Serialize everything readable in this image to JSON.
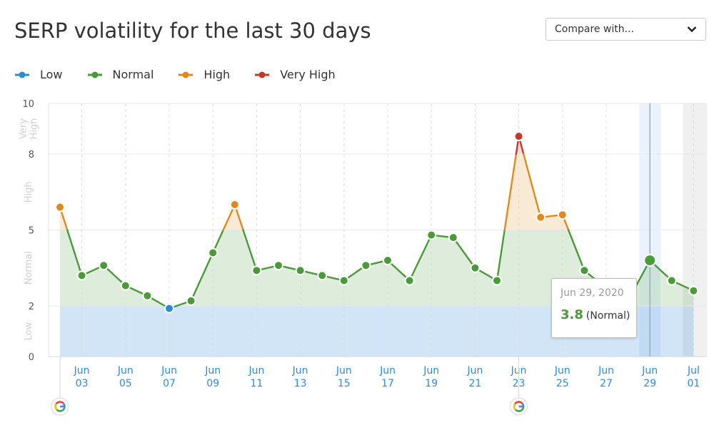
{
  "title": "SERP volatility for the last 30 days",
  "compare": {
    "label": "Compare with..."
  },
  "legend": [
    {
      "label": "Low",
      "color": "#2f8ad6"
    },
    {
      "label": "Normal",
      "color": "#4a9a3a"
    },
    {
      "label": "High",
      "color": "#e08a1e"
    },
    {
      "label": "Very High",
      "color": "#c0392b"
    }
  ],
  "tooltip": {
    "date": "Jun 29, 2020",
    "value": "3.8",
    "category": "(Normal)"
  },
  "chart_data": {
    "type": "line",
    "title": "SERP volatility for the last 30 days",
    "x": [
      "2020-06-02",
      "2020-06-03",
      "2020-06-04",
      "2020-06-05",
      "2020-06-06",
      "2020-06-07",
      "2020-06-08",
      "2020-06-09",
      "2020-06-10",
      "2020-06-11",
      "2020-06-12",
      "2020-06-13",
      "2020-06-14",
      "2020-06-15",
      "2020-06-16",
      "2020-06-17",
      "2020-06-18",
      "2020-06-19",
      "2020-06-20",
      "2020-06-21",
      "2020-06-22",
      "2020-06-23",
      "2020-06-24",
      "2020-06-25",
      "2020-06-26",
      "2020-06-27",
      "2020-06-28",
      "2020-06-29",
      "2020-06-30",
      "2020-07-01"
    ],
    "values": [
      5.9,
      3.2,
      3.6,
      2.8,
      2.4,
      1.9,
      2.2,
      4.1,
      6.0,
      3.4,
      3.6,
      3.4,
      3.2,
      3.0,
      3.6,
      3.8,
      3.0,
      4.8,
      4.7,
      3.5,
      3.0,
      8.7,
      5.5,
      5.6,
      3.4,
      2.7,
      2.2,
      3.8,
      3.0,
      2.6
    ],
    "ylim": [
      0,
      10
    ],
    "yticks": [
      "0",
      "2",
      "5",
      "8",
      "10"
    ],
    "xticks": [
      {
        "month": "Jun",
        "day": "03"
      },
      {
        "month": "Jun",
        "day": "05"
      },
      {
        "month": "Jun",
        "day": "07"
      },
      {
        "month": "Jun",
        "day": "09"
      },
      {
        "month": "Jun",
        "day": "11"
      },
      {
        "month": "Jun",
        "day": "13"
      },
      {
        "month": "Jun",
        "day": "15"
      },
      {
        "month": "Jun",
        "day": "17"
      },
      {
        "month": "Jun",
        "day": "19"
      },
      {
        "month": "Jun",
        "day": "21"
      },
      {
        "month": "Jun",
        "day": "23"
      },
      {
        "month": "Jun",
        "day": "25"
      },
      {
        "month": "Jun",
        "day": "27"
      },
      {
        "month": "Jun",
        "day": "29"
      },
      {
        "month": "Jul",
        "day": "01"
      }
    ],
    "bands": [
      {
        "label": "Low",
        "from": 0,
        "to": 2,
        "color": "#2f8ad6"
      },
      {
        "label": "Normal",
        "from": 2,
        "to": 5,
        "color": "#4a9a3a"
      },
      {
        "label": "High",
        "from": 5,
        "to": 8,
        "color": "#e08a1e"
      },
      {
        "label": "Very High",
        "from": 8,
        "to": 10,
        "color": "#c0392b"
      }
    ],
    "highlighted": "2020-06-29",
    "google_updates": [
      "2020-06-02",
      "2020-06-23"
    ]
  }
}
